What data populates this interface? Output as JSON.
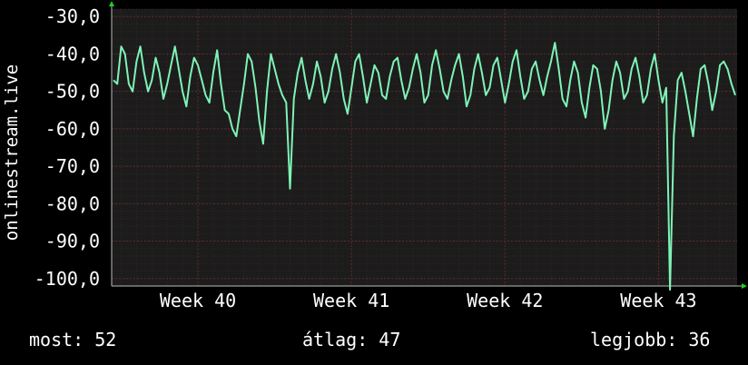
{
  "chart_data": {
    "type": "line",
    "ylabel": "onlinestream.live",
    "ylim": [
      -102,
      -28
    ],
    "y_ticks": [
      -30,
      -40,
      -50,
      -60,
      -70,
      -80,
      -90,
      -100
    ],
    "y_tick_labels": [
      "-30,0",
      "-40,0",
      "-50,0",
      "-60,0",
      "-70,0",
      "-80,0",
      "-90,0",
      "-100,0"
    ],
    "x_tick_labels": [
      "Week 40",
      "Week 41",
      "Week 42",
      "Week 43"
    ],
    "x_tick_index": [
      22,
      62,
      102,
      142
    ],
    "grid": true,
    "series": [
      {
        "color": "#7ef3b7",
        "values": [
          -47,
          -48,
          -38,
          -40,
          -48,
          -50,
          -42,
          -38,
          -45,
          -50,
          -47,
          -41,
          -45,
          -52,
          -48,
          -43,
          -38,
          -44,
          -50,
          -54,
          -46,
          -41,
          -43,
          -47,
          -51,
          -53,
          -45,
          -39,
          -48,
          -55,
          -56,
          -60,
          -62,
          -55,
          -48,
          -40,
          -42,
          -49,
          -58,
          -64,
          -50,
          -40,
          -44,
          -48,
          -51,
          -53,
          -76,
          -52,
          -45,
          -41,
          -47,
          -52,
          -48,
          -42,
          -46,
          -53,
          -50,
          -44,
          -40,
          -45,
          -52,
          -56,
          -49,
          -42,
          -40,
          -46,
          -53,
          -48,
          -43,
          -45,
          -51,
          -52,
          -46,
          -42,
          -41,
          -47,
          -52,
          -49,
          -44,
          -40,
          -45,
          -53,
          -51,
          -43,
          -39,
          -44,
          -50,
          -52,
          -47,
          -43,
          -40,
          -46,
          -54,
          -51,
          -44,
          -40,
          -45,
          -51,
          -49,
          -43,
          -41,
          -47,
          -53,
          -48,
          -42,
          -39,
          -46,
          -52,
          -50,
          -44,
          -42,
          -47,
          -51,
          -46,
          -42,
          -37,
          -44,
          -52,
          -54,
          -47,
          -42,
          -45,
          -53,
          -57,
          -49,
          -43,
          -44,
          -50,
          -60,
          -55,
          -47,
          -42,
          -45,
          -52,
          -50,
          -44,
          -41,
          -46,
          -53,
          -51,
          -44,
          -40,
          -47,
          -53,
          -49,
          -103,
          -62,
          -47,
          -45,
          -50,
          -56,
          -62,
          -52,
          -44,
          -43,
          -48,
          -55,
          -50,
          -43,
          -42,
          -44,
          -48,
          -51
        ]
      }
    ]
  },
  "stats": {
    "current": "most: 52",
    "average": "átlag: 47",
    "best": "legjobb: 36"
  }
}
